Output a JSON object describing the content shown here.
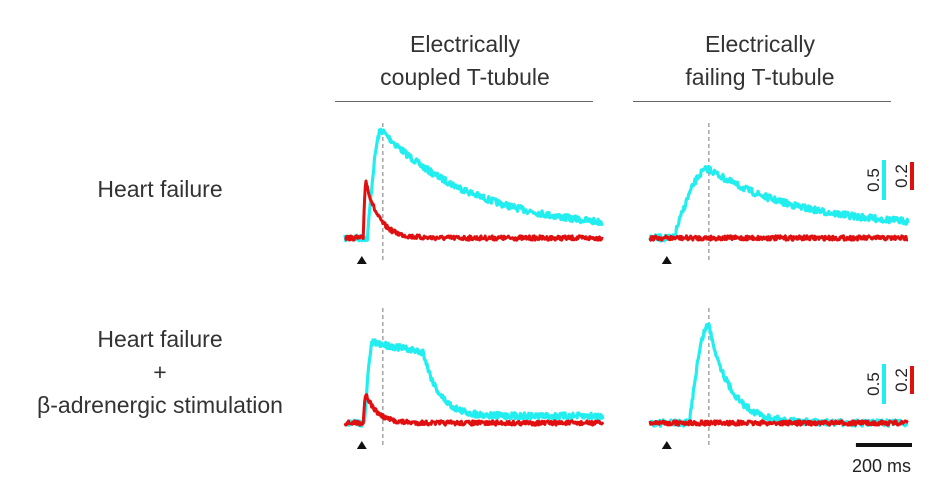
{
  "chart_data": {
    "type": "line",
    "columns": [
      {
        "title_line1": "Electrically",
        "title_line2": "coupled T-tubule"
      },
      {
        "title_line1": "Electrically",
        "title_line2": "failing T-tubule"
      }
    ],
    "rows": [
      {
        "label_line1": "Heart failure",
        "label_line2": "",
        "label_line3": ""
      },
      {
        "label_line1": "Heart failure",
        "label_line2": "+",
        "label_line3": "β-adrenergic stimulation"
      }
    ],
    "x_unit": "ms",
    "x_range_ms": [
      -60,
      860
    ],
    "stimulus_time_ms": 0,
    "series_colors": {
      "cyan": "#22eef0",
      "red": "#e01010"
    },
    "panels": [
      {
        "row": 0,
        "col": 0,
        "dashed_time_ms": 75,
        "cyan": {
          "baseline": 0.0,
          "peak": 1.0,
          "rise_start_ms": 20,
          "peak_ms": 70,
          "decay_ms": 330,
          "end_level": 0.06
        },
        "red": {
          "baseline": 0.0,
          "peak": 1.0,
          "rise_start_ms": 5,
          "peak_ms": 15,
          "decay_ms": 45,
          "end_level": 0.0
        }
      },
      {
        "row": 0,
        "col": 1,
        "dashed_time_ms": 150,
        "cyan": {
          "baseline": 0.0,
          "peak": 0.64,
          "rise_start_ms": 25,
          "peak_ms": 150,
          "decay_ms": 310,
          "end_level": 0.1
        },
        "red": {
          "baseline": 0.0,
          "peak": 0.0,
          "rise_start_ms": 0,
          "peak_ms": 0,
          "decay_ms": 1,
          "end_level": 0.0
        }
      },
      {
        "row": 1,
        "col": 0,
        "dashed_time_ms": 75,
        "cyan": {
          "baseline": 0.0,
          "peak": 0.82,
          "rise_start_ms": 10,
          "peak_ms": 40,
          "plateau_ms": 180,
          "decay_ms": 55,
          "end_level": 0.07
        },
        "red": {
          "baseline": 0.0,
          "peak": 0.55,
          "rise_start_ms": 5,
          "peak_ms": 15,
          "decay_ms": 40,
          "end_level": 0.0
        }
      },
      {
        "row": 1,
        "col": 1,
        "dashed_time_ms": 150,
        "cyan": {
          "baseline": 0.0,
          "peak": 1.0,
          "rise_start_ms": 80,
          "peak_ms": 150,
          "decay_ms": 75,
          "end_level": 0.0
        },
        "red": {
          "baseline": 0.0,
          "peak": 0.0,
          "rise_start_ms": 0,
          "peak_ms": 0,
          "decay_ms": 1,
          "end_level": 0.0
        }
      }
    ],
    "amplitude_scale": {
      "cyan_label": "0.5",
      "red_label": "0.2"
    },
    "time_scale": {
      "value_ms": 200,
      "label": "200 ms"
    }
  }
}
